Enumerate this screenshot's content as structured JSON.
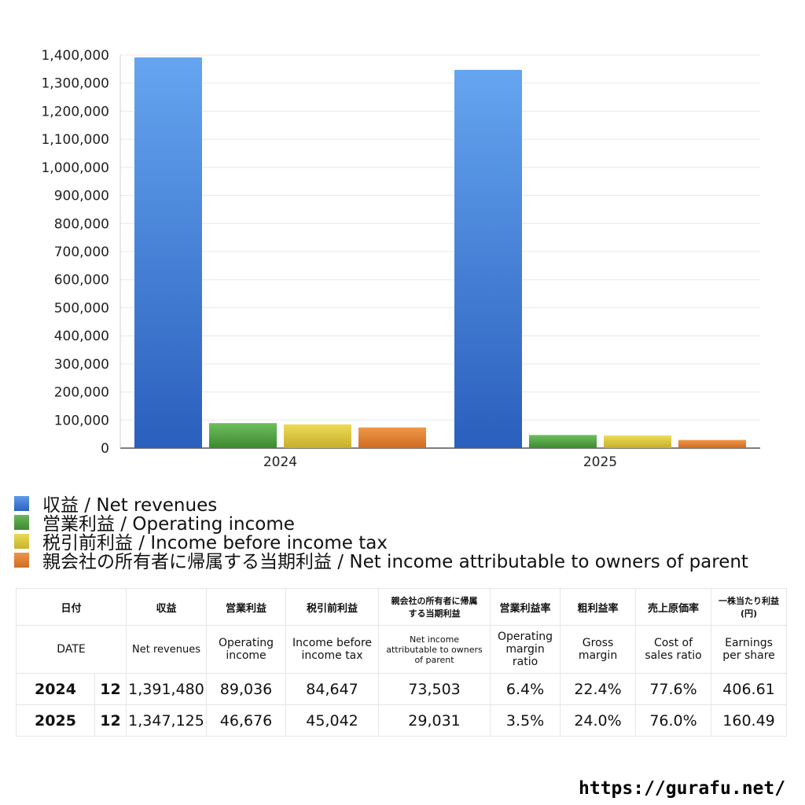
{
  "chart_data": {
    "type": "bar",
    "categories": [
      "2024",
      "2025"
    ],
    "series": [
      {
        "name": "収益 / Net revenues",
        "values": [
          1391480,
          1347125
        ],
        "color": "#3a78d4"
      },
      {
        "name": "営業利益 / Operating income",
        "values": [
          89036,
          46676
        ],
        "color": "#4d9a3e"
      },
      {
        "name": "税引前利益 / Income before income tax",
        "values": [
          84647,
          45042
        ],
        "color": "#d4c33a"
      },
      {
        "name": "親会社の所有者に帰属する当期利益 / Net income attributable to owners of parent",
        "values": [
          73503,
          29031
        ],
        "color": "#dd7c30"
      }
    ],
    "ylim": [
      0,
      1400000
    ],
    "yticks": [
      0,
      100000,
      200000,
      300000,
      400000,
      500000,
      600000,
      700000,
      800000,
      900000,
      1000000,
      1100000,
      1200000,
      1300000,
      1400000
    ],
    "ytick_labels": [
      "0",
      "100,000",
      "200,000",
      "300,000",
      "400,000",
      "500,000",
      "600,000",
      "700,000",
      "800,000",
      "900,000",
      "1,000,000",
      "1,100,000",
      "1,200,000",
      "1,300,000",
      "1,400,000"
    ],
    "grid": true,
    "legend": "bottom"
  },
  "table": {
    "header_jp": {
      "date": "日付",
      "revenues": "収益",
      "operating_income": "営業利益",
      "income_before_tax": "税引前利益",
      "net_income": "親会社の所有者に帰属する当期利益",
      "operating_margin": "営業利益率",
      "gross_margin": "粗利益率",
      "cost_ratio": "売上原価率",
      "eps": "一株当たり利益(円)"
    },
    "header_en": {
      "date": "DATE",
      "revenues": "Net revenues",
      "operating_income": "Operating income",
      "income_before_tax": "Income before income tax",
      "net_income": "Net income attributable to owners of parent",
      "operating_margin": "Operating margin ratio",
      "gross_margin": "Gross margin",
      "cost_ratio": "Cost of sales ratio",
      "eps": "Earnings per share"
    },
    "rows": [
      {
        "year": "2024",
        "month": "12",
        "revenues": "1,391,480",
        "operating_income": "89,036",
        "income_before_tax": "84,647",
        "net_income": "73,503",
        "operating_margin": "6.4%",
        "gross_margin": "22.4%",
        "cost_ratio": "77.6%",
        "eps": "406.61"
      },
      {
        "year": "2025",
        "month": "12",
        "revenues": "1,347,125",
        "operating_income": "46,676",
        "income_before_tax": "45,042",
        "net_income": "29,031",
        "operating_margin": "3.5%",
        "gross_margin": "24.0%",
        "cost_ratio": "76.0%",
        "eps": "160.49"
      }
    ]
  },
  "footer": {
    "url": "https://gurafu.net/"
  }
}
